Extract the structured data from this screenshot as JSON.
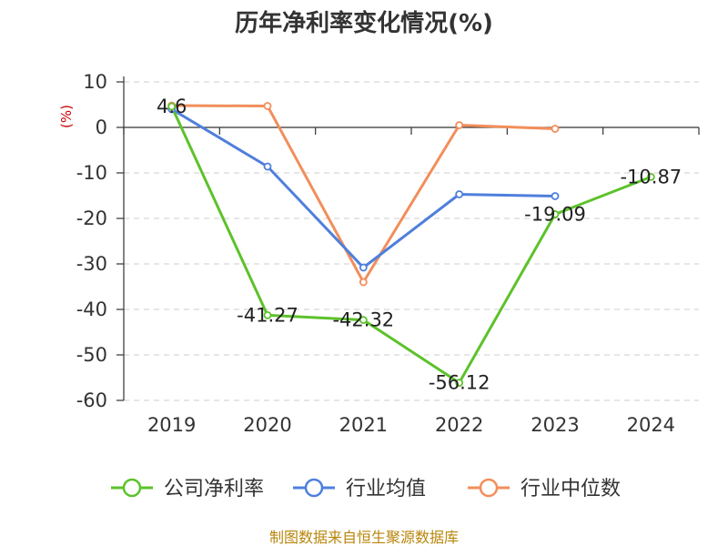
{
  "chart_data": {
    "type": "line",
    "title": "历年净利率变化情况(%)",
    "ylabel": "(%)",
    "categories": [
      "2019",
      "2020",
      "2021",
      "2022",
      "2023",
      "2024"
    ],
    "ylim": [
      -60,
      10
    ],
    "yticks": [
      10,
      0,
      -10,
      -20,
      -30,
      -40,
      -50,
      -60
    ],
    "grid": true,
    "legend_position": "bottom",
    "series": [
      {
        "name": "公司净利率",
        "color": "#5cc22a",
        "values": [
          4.6,
          -41.27,
          -42.32,
          -56.12,
          -19.09,
          -10.87
        ],
        "labels": [
          "4.6",
          "-41.27",
          "-42.32",
          "-56.12",
          "-19.09",
          "-10.87"
        ]
      },
      {
        "name": "行业均值",
        "color": "#4f7fdc",
        "values": [
          4.0,
          -8.6,
          -30.8,
          -14.7,
          -15.1,
          null
        ]
      },
      {
        "name": "行业中位数",
        "color": "#f28e5b",
        "values": [
          4.8,
          4.7,
          -34.0,
          0.5,
          -0.3,
          null
        ]
      }
    ]
  },
  "source_text": "制图数据来自恒生聚源数据库"
}
